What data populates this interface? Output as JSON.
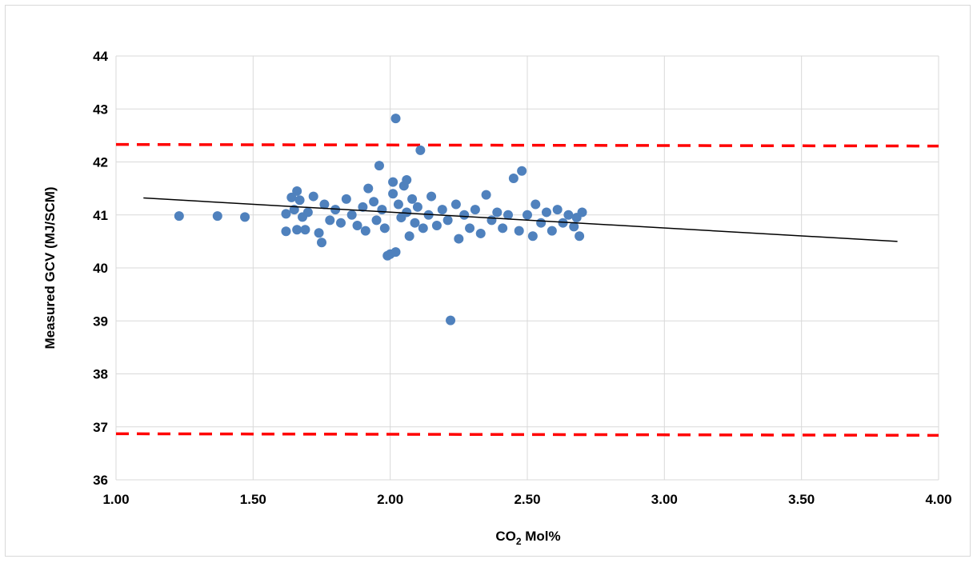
{
  "chart_data": {
    "type": "scatter",
    "title": "",
    "xlabel": "CO",
    "xlabel_subscript": "2",
    "xlabel_suffix": " Mol%",
    "ylabel": "Measured GCV (MJ/SCM)",
    "xlim": [
      1.0,
      4.0
    ],
    "ylim": [
      36,
      44
    ],
    "x_ticks": [
      "1.00",
      "1.50",
      "2.00",
      "2.50",
      "3.00",
      "3.50",
      "4.00"
    ],
    "y_ticks": [
      "36",
      "37",
      "38",
      "39",
      "40",
      "41",
      "42",
      "43",
      "44"
    ],
    "grid": true,
    "legend": "none",
    "colors": {
      "points": "#4f81bd",
      "trendline": "#000000",
      "limits": "#ff0000",
      "grid": "#d9d9d9"
    },
    "series": [
      {
        "type": "scatter",
        "points": [
          [
            1.23,
            40.98
          ],
          [
            1.37,
            40.98
          ],
          [
            1.47,
            40.96
          ],
          [
            1.62,
            40.69
          ],
          [
            1.62,
            41.02
          ],
          [
            1.64,
            41.33
          ],
          [
            1.65,
            41.1
          ],
          [
            1.66,
            41.45
          ],
          [
            1.66,
            40.72
          ],
          [
            1.67,
            41.28
          ],
          [
            1.68,
            40.96
          ],
          [
            1.69,
            40.72
          ],
          [
            1.7,
            41.05
          ],
          [
            1.72,
            41.35
          ],
          [
            1.74,
            40.66
          ],
          [
            1.75,
            40.48
          ],
          [
            1.76,
            41.2
          ],
          [
            1.78,
            40.9
          ],
          [
            1.8,
            41.1
          ],
          [
            1.82,
            40.85
          ],
          [
            1.84,
            41.3
          ],
          [
            1.86,
            41.0
          ],
          [
            1.88,
            40.8
          ],
          [
            1.9,
            41.15
          ],
          [
            1.91,
            40.7
          ],
          [
            1.92,
            41.5
          ],
          [
            1.94,
            41.25
          ],
          [
            1.95,
            40.9
          ],
          [
            1.96,
            41.93
          ],
          [
            1.97,
            41.1
          ],
          [
            1.98,
            40.75
          ],
          [
            1.99,
            40.23
          ],
          [
            2.0,
            40.26
          ],
          [
            2.01,
            41.62
          ],
          [
            2.01,
            41.4
          ],
          [
            2.02,
            42.82
          ],
          [
            2.02,
            40.3
          ],
          [
            2.03,
            41.2
          ],
          [
            2.04,
            40.95
          ],
          [
            2.05,
            41.55
          ],
          [
            2.06,
            41.66
          ],
          [
            2.06,
            41.05
          ],
          [
            2.07,
            40.6
          ],
          [
            2.08,
            41.3
          ],
          [
            2.09,
            40.85
          ],
          [
            2.1,
            41.15
          ],
          [
            2.11,
            42.22
          ],
          [
            2.12,
            40.75
          ],
          [
            2.14,
            41.0
          ],
          [
            2.15,
            41.35
          ],
          [
            2.17,
            40.8
          ],
          [
            2.19,
            41.1
          ],
          [
            2.21,
            40.9
          ],
          [
            2.22,
            39.01
          ],
          [
            2.24,
            41.2
          ],
          [
            2.25,
            40.55
          ],
          [
            2.27,
            41.0
          ],
          [
            2.29,
            40.75
          ],
          [
            2.31,
            41.1
          ],
          [
            2.33,
            40.65
          ],
          [
            2.35,
            41.38
          ],
          [
            2.37,
            40.9
          ],
          [
            2.39,
            41.05
          ],
          [
            2.41,
            40.75
          ],
          [
            2.43,
            41.0
          ],
          [
            2.45,
            41.69
          ],
          [
            2.47,
            40.7
          ],
          [
            2.48,
            41.83
          ],
          [
            2.5,
            41.0
          ],
          [
            2.52,
            40.6
          ],
          [
            2.53,
            41.2
          ],
          [
            2.55,
            40.85
          ],
          [
            2.57,
            41.05
          ],
          [
            2.59,
            40.7
          ],
          [
            2.61,
            41.1
          ],
          [
            2.63,
            40.85
          ],
          [
            2.65,
            41.0
          ],
          [
            2.67,
            40.78
          ],
          [
            2.68,
            40.95
          ],
          [
            2.69,
            40.6
          ],
          [
            2.7,
            41.05
          ]
        ]
      },
      {
        "type": "trendline",
        "points": [
          [
            1.1,
            41.32
          ],
          [
            3.85,
            40.5
          ]
        ]
      },
      {
        "type": "limit",
        "style": "dashed",
        "points": [
          [
            1.0,
            42.33
          ],
          [
            4.0,
            42.3
          ]
        ]
      },
      {
        "type": "limit",
        "style": "dashed",
        "points": [
          [
            1.0,
            36.87
          ],
          [
            4.0,
            36.84
          ]
        ]
      }
    ]
  }
}
